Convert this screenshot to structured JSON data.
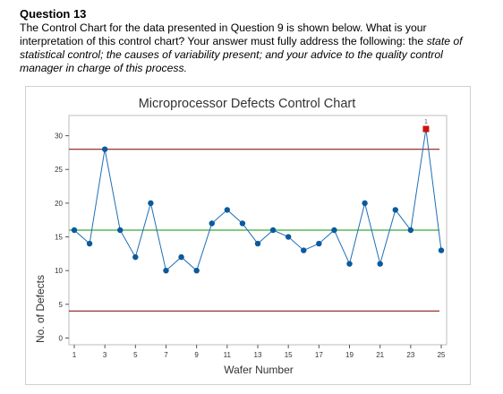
{
  "question": {
    "title": "Question 13",
    "text_plain": "The Control Chart for the data presented in Question 9 is shown below.  What is your interpretation of this control chart?  Your answer must fully address the following: the",
    "text_italic": "state of statistical control; the causes of variability present; and your advice to the quality control manager in charge of this process."
  },
  "chart_data": {
    "type": "line",
    "title": "Microprocessor Defects Control Chart",
    "xlabel": "Wafer Number",
    "ylabel": "No. of Defects",
    "x": [
      1,
      2,
      3,
      4,
      5,
      6,
      7,
      8,
      9,
      10,
      11,
      12,
      13,
      14,
      15,
      16,
      17,
      18,
      19,
      20,
      21,
      22,
      23,
      24,
      25
    ],
    "values": [
      16,
      14,
      28,
      16,
      12,
      20,
      10,
      12,
      10,
      17,
      19,
      17,
      14,
      16,
      15,
      13,
      14,
      16,
      11,
      20,
      11,
      19,
      16,
      31,
      13
    ],
    "xticks": [
      1,
      3,
      5,
      7,
      9,
      11,
      13,
      15,
      17,
      19,
      21,
      23,
      25
    ],
    "yticks": [
      0,
      5,
      10,
      15,
      20,
      25,
      30
    ],
    "ylim": [
      0,
      32
    ],
    "xlim": [
      1,
      25
    ],
    "center_line": 16,
    "ucl": 28,
    "lcl": 4,
    "out_of_control": [
      {
        "x": 24,
        "label": "1"
      }
    ],
    "colors": {
      "series": "#1f6eb5",
      "point": "#0a5a9c",
      "center": "#5cb85c",
      "limits": "#8b1a1a",
      "flag": "#cc1111"
    },
    "grid": false
  }
}
